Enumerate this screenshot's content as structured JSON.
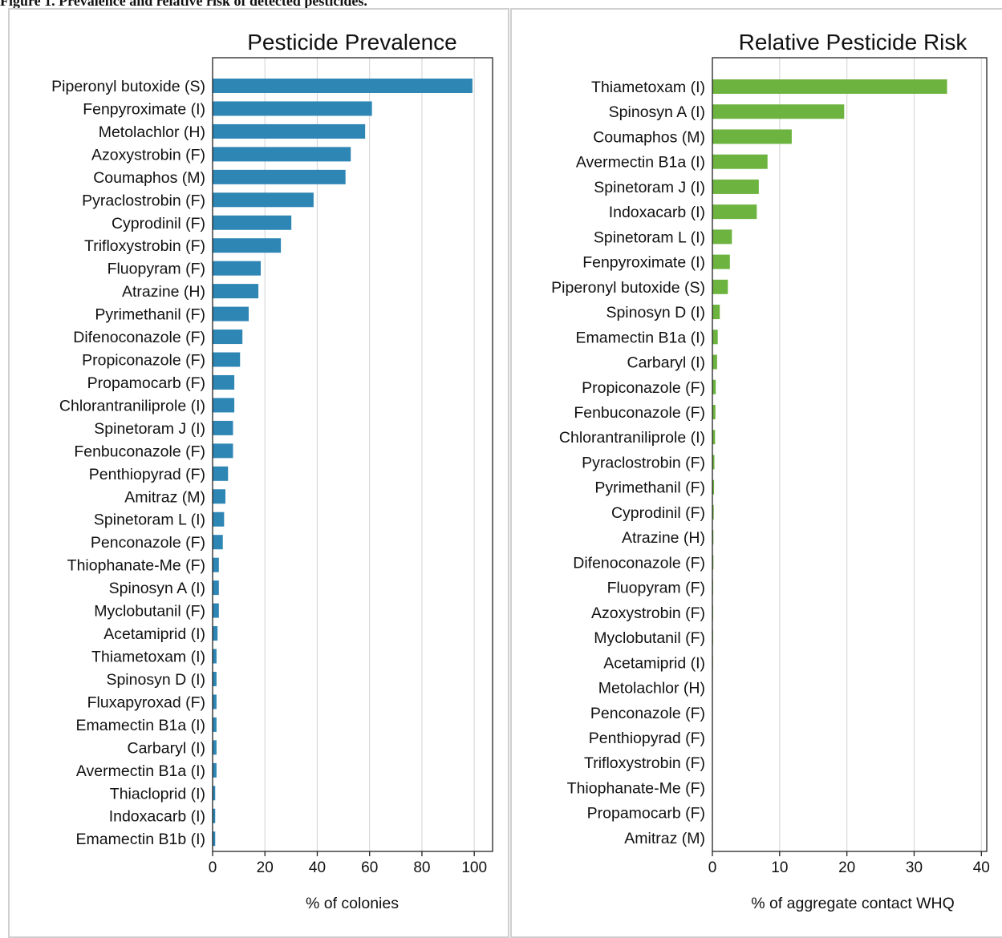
{
  "figure_caption": "Figure 1. Prevalence and relative risk of detected pesticides.",
  "chart_data": [
    {
      "type": "bar",
      "orientation": "horizontal",
      "title": "Pesticide Prevalence",
      "xlabel": "% of colonies",
      "ylabel": "",
      "xlim": [
        0,
        107
      ],
      "xticks": [
        0,
        20,
        40,
        60,
        80,
        100
      ],
      "grid": true,
      "color": "#2e86b5",
      "categories": [
        "Piperonyl butoxide (S)",
        "Fenpyroximate (I)",
        "Metolachlor (H)",
        "Azoxystrobin (F)",
        "Coumaphos (M)",
        "Pyraclostrobin (F)",
        "Cyprodinil (F)",
        "Trifloxystrobin (F)",
        "Fluopyram (F)",
        "Atrazine (H)",
        "Pyrimethanil (F)",
        "Difenoconazole (F)",
        "Propiconazole (F)",
        "Propamocarb (F)",
        "Chlorantraniliprole (I)",
        "Spinetoram J (I)",
        "Fenbuconazole (F)",
        "Penthiopyrad (F)",
        "Amitraz (M)",
        "Spinetoram L (I)",
        "Penconazole (F)",
        "Thiophanate-Me (F)",
        "Spinosyn A (I)",
        "Myclobutanil (F)",
        "Acetamiprid (I)",
        "Thiametoxam (I)",
        "Spinosyn D (I)",
        "Fluxapyroxad (F)",
        "Emamectin B1a (I)",
        "Carbaryl (I)",
        "Avermectin B1a (I)",
        "Thiacloprid (I)",
        "Indoxacarb (I)",
        "Emamectin B1b (I)"
      ],
      "values": [
        99.3,
        60.9,
        58.3,
        52.8,
        50.8,
        38.6,
        30.1,
        26.1,
        18.4,
        17.5,
        13.8,
        11.4,
        10.5,
        8.3,
        8.3,
        7.8,
        7.8,
        5.9,
        4.9,
        4.4,
        3.9,
        2.4,
        2.4,
        2.4,
        1.9,
        1.5,
        1.5,
        1.5,
        1.5,
        1.5,
        1.5,
        1.0,
        1.0,
        1.0
      ]
    },
    {
      "type": "bar",
      "orientation": "horizontal",
      "title": "Relative Pesticide Risk",
      "xlabel": "% of aggregate contact WHQ",
      "ylabel": "",
      "xlim": [
        0,
        40.8
      ],
      "xticks": [
        0,
        10,
        20,
        30,
        40
      ],
      "grid": true,
      "color": "#6db33f",
      "categories": [
        "Thiametoxam (I)",
        "Spinosyn A (I)",
        "Coumaphos (M)",
        "Avermectin B1a (I)",
        "Spinetoram J (I)",
        "Indoxacarb (I)",
        "Spinetoram L (I)",
        "Fenpyroximate (I)",
        "Piperonyl butoxide (S)",
        "Spinosyn D (I)",
        "Emamectin B1a (I)",
        "Carbaryl (I)",
        "Propiconazole (F)",
        "Fenbuconazole (F)",
        "Chlorantraniliprole (I)",
        "Pyraclostrobin (F)",
        "Pyrimethanil (F)",
        "Cyprodinil (F)",
        "Atrazine (H)",
        "Difenoconazole (F)",
        "Fluopyram (F)",
        "Azoxystrobin (F)",
        "Myclobutanil (F)",
        "Acetamiprid (I)",
        "Metolachlor (H)",
        "Penconazole (F)",
        "Penthiopyrad (F)",
        "Trifloxystrobin (F)",
        "Thiophanate-Me (F)",
        "Propamocarb (F)",
        "Amitraz (M)"
      ],
      "values": [
        34.9,
        19.6,
        11.8,
        8.2,
        6.9,
        6.6,
        2.9,
        2.6,
        2.3,
        1.1,
        0.8,
        0.7,
        0.5,
        0.45,
        0.4,
        0.3,
        0.25,
        0.2,
        0.15,
        0.15,
        0.1,
        0.1,
        0.1,
        0.08,
        0.05,
        0.05,
        0.04,
        0.04,
        0.03,
        0.02,
        0.01
      ]
    }
  ]
}
